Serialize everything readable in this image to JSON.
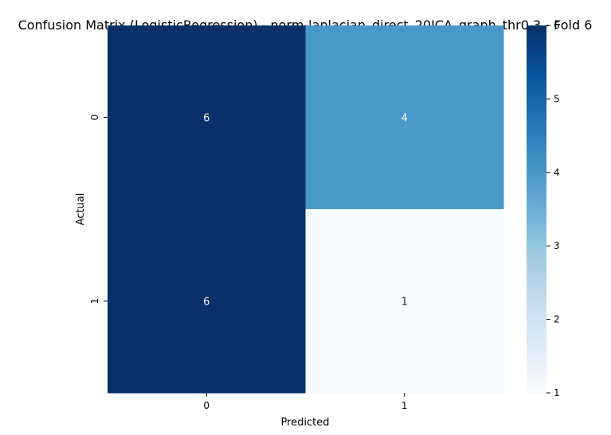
{
  "chart_data": {
    "type": "heatmap",
    "title": "Confusion Matrix (LogisticRegression) - norm-laplacian_direct_20ICA_graph_thr0.3 - Fold 6",
    "xlabel": "Predicted",
    "ylabel": "Actual",
    "x_categories": [
      "0",
      "1"
    ],
    "y_categories": [
      "0",
      "1"
    ],
    "values": [
      [
        6,
        4
      ],
      [
        6,
        1
      ]
    ],
    "colormap": "Blues",
    "color_range": [
      1,
      6
    ],
    "colorbar_ticks": [
      "1",
      "2",
      "3",
      "4",
      "5",
      "6"
    ],
    "colorbar_placement": "right",
    "grid": false
  }
}
